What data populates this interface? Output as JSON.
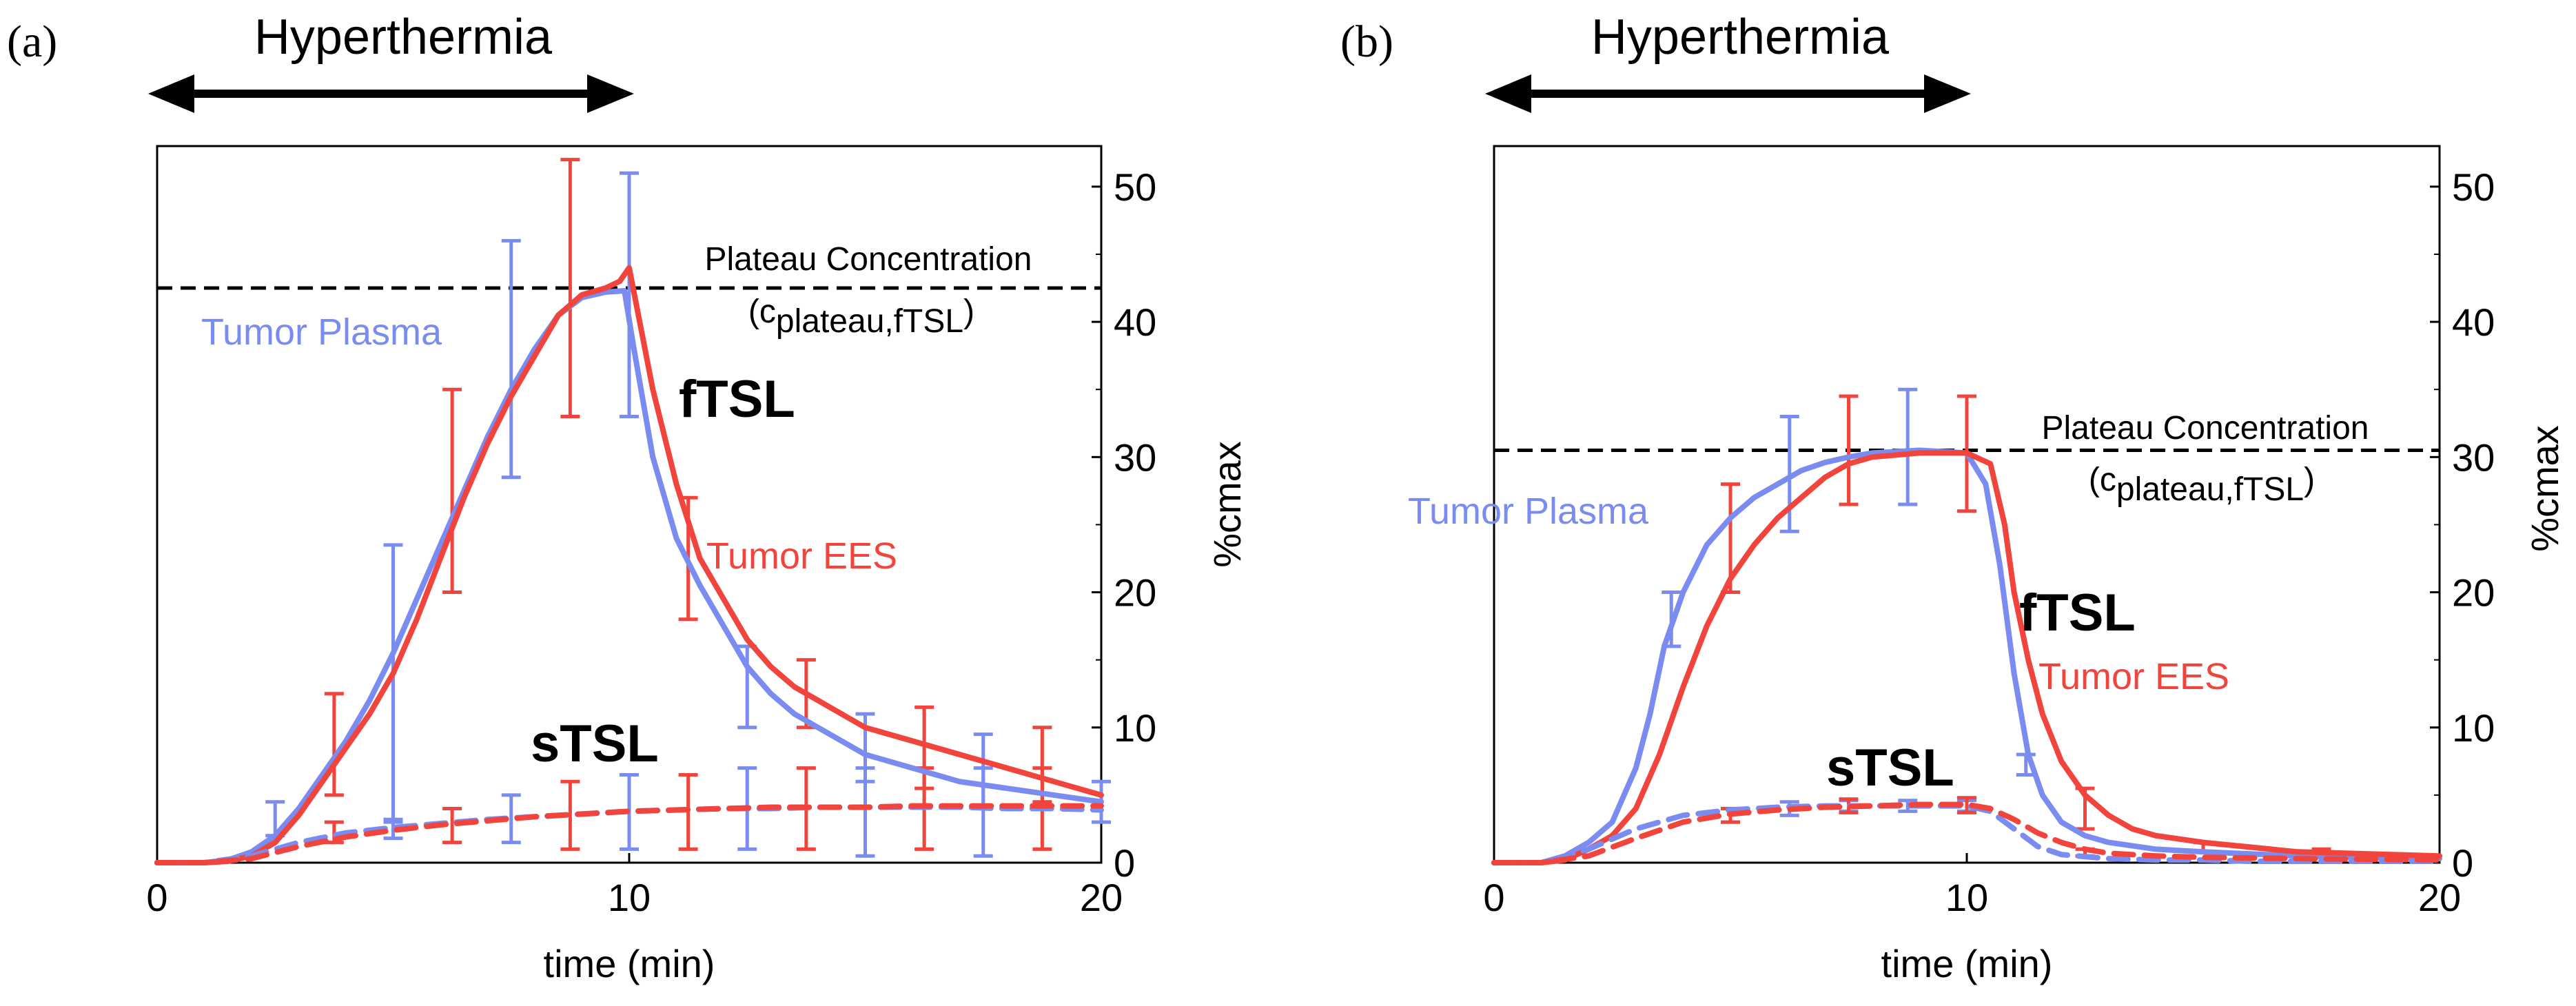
{
  "colors": {
    "plasma": "#7b8cf0",
    "ees": "#f0443c",
    "axis": "#000000"
  },
  "hyperthermia_label": "Hyperthermia",
  "chart_data": [
    {
      "type": "line",
      "panel_label": "(a)",
      "xlabel": "time (min)",
      "ylabel": "%cmax",
      "xlim": [
        0,
        20
      ],
      "ylim": [
        0,
        53
      ],
      "xticks": [
        0,
        10,
        20
      ],
      "yticks": [
        0,
        10,
        20,
        30,
        40,
        50
      ],
      "hyperthermia_range": [
        0,
        10
      ],
      "plateau": {
        "value": 42.5,
        "label": "Plateau Concentration",
        "sub_prefix": "(c",
        "sub_text": "plateau,fTSL",
        "sub_suffix": ")"
      },
      "annotations": {
        "plasma": "Tumor Plasma",
        "ees": "Tumor EES",
        "ftsl": "fTSL",
        "stsl": "sTSL"
      },
      "series": [
        {
          "name": "fTSL Tumor Plasma",
          "color": "plasma",
          "dashed": false,
          "x": [
            0,
            1,
            1.5,
            2,
            2.5,
            3,
            3.5,
            4,
            4.5,
            5,
            5.5,
            6,
            6.5,
            7,
            7.5,
            8,
            8.5,
            9,
            9.5,
            9.9,
            10.1,
            10.5,
            11,
            11.5,
            12,
            12.5,
            13,
            13.5,
            14,
            15,
            16,
            17,
            18,
            19,
            20
          ],
          "y": [
            0,
            0,
            0.2,
            0.8,
            2,
            4,
            6.5,
            9,
            12,
            15.5,
            19.5,
            23.5,
            27.5,
            31.5,
            35,
            38,
            40.5,
            41.8,
            42.2,
            42.3,
            38,
            30,
            24,
            20.5,
            17.5,
            14.5,
            12.5,
            11,
            10,
            8,
            7,
            6,
            5.5,
            5,
            4.5
          ]
        },
        {
          "name": "fTSL Tumor EES",
          "color": "ees",
          "dashed": false,
          "x": [
            0,
            1,
            1.5,
            2,
            2.5,
            3,
            3.5,
            4,
            4.5,
            5,
            5.5,
            6,
            6.5,
            7,
            7.5,
            8,
            8.5,
            9,
            9.5,
            9.8,
            10,
            10.5,
            11,
            11.5,
            12,
            12.5,
            13,
            13.5,
            14,
            15,
            16,
            17,
            18,
            19,
            20
          ],
          "y": [
            0,
            0,
            0.1,
            0.5,
            1.5,
            3.5,
            6,
            8.5,
            11,
            14,
            18,
            22.5,
            27,
            31,
            34.5,
            37.5,
            40.5,
            42,
            42.5,
            43,
            44,
            35,
            28,
            22.5,
            19.5,
            16.5,
            14.5,
            13,
            12,
            10,
            9,
            8,
            7,
            6,
            5
          ]
        },
        {
          "name": "sTSL Tumor Plasma",
          "color": "plasma",
          "dashed": true,
          "x": [
            0,
            1,
            2,
            3,
            4,
            5,
            6,
            7,
            8,
            9,
            10,
            11,
            12,
            13,
            14,
            15,
            16,
            17,
            18,
            19,
            20
          ],
          "y": [
            0,
            0,
            0.5,
            1.5,
            2.2,
            2.6,
            2.9,
            3.2,
            3.4,
            3.6,
            3.8,
            3.9,
            4,
            4,
            4.1,
            4.1,
            4.1,
            4.1,
            4,
            4,
            3.9
          ]
        },
        {
          "name": "sTSL Tumor EES",
          "color": "ees",
          "dashed": true,
          "x": [
            0,
            1,
            2,
            3,
            4,
            5,
            6,
            7,
            8,
            9,
            10,
            11,
            12,
            13,
            14,
            15,
            16,
            17,
            18,
            19,
            20
          ],
          "y": [
            0,
            0,
            0.3,
            1.2,
            1.9,
            2.4,
            2.8,
            3.1,
            3.4,
            3.6,
            3.8,
            3.9,
            4,
            4.1,
            4.1,
            4.1,
            4.2,
            4.2,
            4.2,
            4.2,
            4.2
          ]
        }
      ],
      "error_bars": [
        {
          "color": "plasma",
          "points": [
            [
              2.5,
              2,
              4.5
            ],
            [
              5,
              3,
              23.5
            ],
            [
              7.5,
              28.5,
              46
            ],
            [
              10,
              33,
              51
            ],
            [
              12.5,
              10,
              16
            ],
            [
              15,
              6,
              11
            ],
            [
              17.5,
              4,
              9.5
            ],
            [
              20,
              3,
              6
            ],
            [
              5,
              1.8,
              3.2
            ],
            [
              7.5,
              1.5,
              5
            ],
            [
              10,
              1,
              6.5
            ],
            [
              12.5,
              1,
              7
            ],
            [
              15,
              0.5,
              7
            ],
            [
              17.5,
              0.5,
              7
            ]
          ]
        },
        {
          "color": "ees",
          "points": [
            [
              3.75,
              5,
              12.5
            ],
            [
              6.25,
              20,
              35
            ],
            [
              8.75,
              33,
              52
            ],
            [
              11.25,
              18,
              27
            ],
            [
              13.75,
              10,
              15
            ],
            [
              16.25,
              5.5,
              11.5
            ],
            [
              18.75,
              4.5,
              10
            ],
            [
              3.75,
              1.5,
              3
            ],
            [
              6.25,
              1.5,
              4
            ],
            [
              8.75,
              1,
              6
            ],
            [
              11.25,
              1,
              6.5
            ],
            [
              13.75,
              1,
              7
            ],
            [
              16.25,
              1,
              7
            ],
            [
              18.75,
              1,
              7
            ]
          ]
        }
      ]
    },
    {
      "type": "line",
      "panel_label": "(b)",
      "xlabel": "time (min)",
      "ylabel": "%cmax",
      "xlim": [
        0,
        20
      ],
      "ylim": [
        0,
        53
      ],
      "xticks": [
        0,
        10,
        20
      ],
      "yticks": [
        0,
        10,
        20,
        30,
        40,
        50
      ],
      "hyperthermia_range": [
        0,
        10
      ],
      "plateau": {
        "value": 30.5,
        "label": "Plateau Concentration",
        "sub_prefix": "(c",
        "sub_text": "plateau,fTSL",
        "sub_suffix": ")"
      },
      "annotations": {
        "plasma": "Tumor Plasma",
        "ees": "Tumor EES",
        "ftsl": "fTSL",
        "stsl": "sTSL"
      },
      "series": [
        {
          "name": "fTSL Tumor Plasma",
          "color": "plasma",
          "dashed": false,
          "x": [
            0,
            1,
            1.5,
            2,
            2.5,
            3,
            3.3,
            3.6,
            4,
            4.5,
            5,
            5.5,
            6,
            6.5,
            7,
            7.5,
            8,
            9,
            10,
            10.4,
            10.7,
            11,
            11.3,
            11.6,
            12,
            12.5,
            13,
            14,
            15,
            17,
            20
          ],
          "y": [
            0,
            0,
            0.5,
            1.5,
            3,
            7,
            11,
            16,
            20,
            23.5,
            25.5,
            27,
            28,
            29,
            29.6,
            30,
            30.3,
            30.5,
            30.3,
            28,
            22,
            14,
            8,
            5,
            3,
            2,
            1.5,
            1,
            0.8,
            0.5,
            0.3
          ]
        },
        {
          "name": "fTSL Tumor EES",
          "color": "ees",
          "dashed": false,
          "x": [
            0,
            1,
            1.5,
            2,
            2.5,
            3,
            3.5,
            4,
            4.5,
            5,
            5.5,
            6,
            6.5,
            7,
            7.5,
            8,
            9,
            10,
            10.5,
            10.8,
            11,
            11.3,
            11.6,
            12,
            12.5,
            13,
            13.5,
            14,
            15,
            17,
            20
          ],
          "y": [
            0,
            0,
            0.2,
            1,
            2,
            4,
            8,
            13,
            17.5,
            21,
            23.5,
            25.5,
            27,
            28.5,
            29.5,
            30,
            30.3,
            30.3,
            29.5,
            25,
            20,
            15,
            11,
            7.5,
            5,
            3.5,
            2.5,
            2,
            1.5,
            0.8,
            0.5
          ]
        },
        {
          "name": "sTSL Tumor Plasma",
          "color": "plasma",
          "dashed": true,
          "x": [
            0,
            1,
            2,
            3,
            4,
            5,
            6,
            7,
            8,
            9,
            10,
            10.5,
            11,
            11.5,
            12,
            13,
            14,
            15,
            16,
            18,
            20
          ],
          "y": [
            0,
            0,
            1,
            2.5,
            3.5,
            3.9,
            4.1,
            4.2,
            4.2,
            4.2,
            4.2,
            3.8,
            2.5,
            1.2,
            0.6,
            0.3,
            0.2,
            0.2,
            0.1,
            0.1,
            0.1
          ]
        },
        {
          "name": "sTSL Tumor EES",
          "color": "ees",
          "dashed": true,
          "x": [
            0,
            1,
            2,
            3,
            4,
            5,
            6,
            7,
            8,
            9,
            10,
            10.5,
            11,
            11.5,
            12,
            12.5,
            13,
            14,
            15,
            17,
            20
          ],
          "y": [
            0,
            0,
            0.5,
            1.8,
            3,
            3.6,
            3.9,
            4.1,
            4.2,
            4.3,
            4.3,
            4,
            3.2,
            2.2,
            1.5,
            1,
            0.7,
            0.5,
            0.4,
            0.3,
            0.2
          ]
        }
      ],
      "error_bars": [
        {
          "color": "plasma",
          "points": [
            [
              3.75,
              16,
              20
            ],
            [
              6.25,
              24.5,
              33
            ],
            [
              8.75,
              26.5,
              35
            ],
            [
              11.25,
              6.5,
              8
            ],
            [
              5,
              3,
              4
            ],
            [
              6.25,
              3.5,
              4.5
            ],
            [
              7.5,
              3.8,
              4.6
            ],
            [
              8.75,
              3.8,
              4.6
            ],
            [
              10,
              3.8,
              4.6
            ]
          ]
        },
        {
          "color": "ees",
          "points": [
            [
              5,
              20,
              28
            ],
            [
              7.5,
              26.5,
              34.5
            ],
            [
              10,
              26,
              34.5
            ],
            [
              12.5,
              2.5,
              5.5
            ],
            [
              15,
              0.8,
              1.5
            ],
            [
              17.5,
              0.5,
              1
            ],
            [
              5,
              3,
              4
            ],
            [
              7.5,
              3.7,
              4.7
            ],
            [
              10,
              3.7,
              4.8
            ],
            [
              12.5,
              0.5,
              1
            ]
          ]
        }
      ]
    }
  ]
}
